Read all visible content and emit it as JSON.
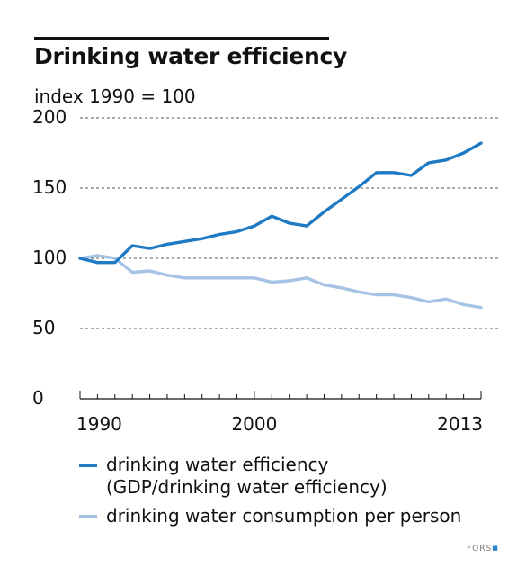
{
  "header": {
    "title": "Drinking water efficiency",
    "subtitle": "index 1990 = 100"
  },
  "legend": {
    "items": [
      {
        "line1": "drinking water efficiency",
        "line2": "(GDP/drinking water efficiency)",
        "color": "#1f7ac4"
      },
      {
        "line1": "drinking water consumption per person",
        "line2": "",
        "color": "#a6c3e6"
      }
    ]
  },
  "source": {
    "label": "FORS",
    "dot_color": "#2a86cc"
  },
  "chart_data": {
    "type": "line",
    "title": "Drinking water efficiency",
    "ylabel": "index 1990 = 100",
    "xlabel": "",
    "ylim": [
      0,
      200
    ],
    "xlim": [
      1990,
      2013
    ],
    "yticks": [
      0,
      50,
      100,
      150,
      200
    ],
    "xtick_labels": [
      1990,
      2000,
      2013
    ],
    "grid": "dashed horizontal",
    "x": [
      1990,
      1991,
      1992,
      1993,
      1994,
      1995,
      1996,
      1997,
      1998,
      1999,
      2000,
      2001,
      2002,
      2003,
      2004,
      2005,
      2006,
      2007,
      2008,
      2009,
      2010,
      2011,
      2012,
      2013
    ],
    "series": [
      {
        "name": "drinking water efficiency (GDP/drinking water efficiency)",
        "color": "#1f7ac4",
        "values": [
          100,
          97,
          97,
          109,
          107,
          110,
          112,
          114,
          117,
          119,
          123,
          130,
          125,
          123,
          133,
          142,
          151,
          161,
          161,
          159,
          168,
          170,
          175,
          182
        ]
      },
      {
        "name": "drinking water consumption per person",
        "color": "#a6c3e6",
        "values": [
          100,
          102,
          100,
          90,
          91,
          88,
          86,
          86,
          86,
          86,
          86,
          83,
          84,
          86,
          81,
          79,
          76,
          74,
          74,
          72,
          69,
          71,
          67,
          65
        ]
      }
    ]
  }
}
